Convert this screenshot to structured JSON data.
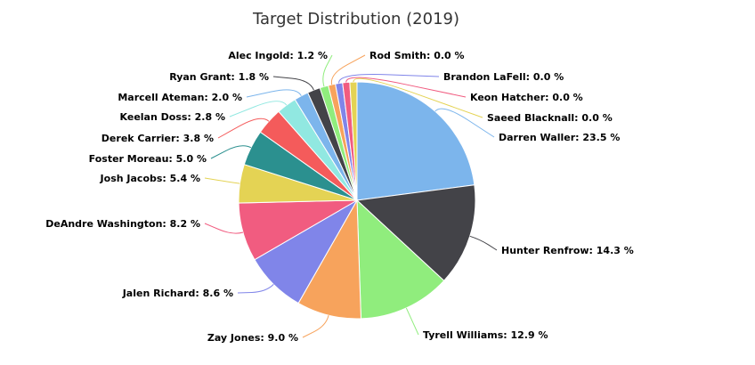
{
  "chart_data": {
    "type": "pie",
    "title": "Target Distribution (2019)",
    "value_suffix": " %",
    "slices": [
      {
        "name": "Darren Waller",
        "value": 23.5,
        "color": "#7cb5ec"
      },
      {
        "name": "Hunter Renfrow",
        "value": 14.3,
        "color": "#434348"
      },
      {
        "name": "Tyrell Williams",
        "value": 12.9,
        "color": "#90ed7d"
      },
      {
        "name": "Zay Jones",
        "value": 9.0,
        "color": "#f7a35c"
      },
      {
        "name": "Jalen Richard",
        "value": 8.6,
        "color": "#8085e9"
      },
      {
        "name": "DeAndre Washington",
        "value": 8.2,
        "color": "#f15c80"
      },
      {
        "name": "Josh Jacobs",
        "value": 5.4,
        "color": "#e4d354"
      },
      {
        "name": "Foster Moreau",
        "value": 5.0,
        "color": "#2b908f"
      },
      {
        "name": "Derek Carrier",
        "value": 3.8,
        "color": "#f45b5b"
      },
      {
        "name": "Keelan Doss",
        "value": 2.8,
        "color": "#91e8e1"
      },
      {
        "name": "Marcell Ateman",
        "value": 2.0,
        "color": "#7cb5ec"
      },
      {
        "name": "Ryan Grant",
        "value": 1.8,
        "color": "#434348"
      },
      {
        "name": "Alec Ingold",
        "value": 1.2,
        "color": "#90ed7d"
      },
      {
        "name": "Rod Smith",
        "value": 0.0,
        "color": "#f7a35c"
      },
      {
        "name": "Brandon LaFell",
        "value": 0.0,
        "color": "#8085e9"
      },
      {
        "name": "Keon Hatcher",
        "value": 0.0,
        "color": "#f15c80"
      },
      {
        "name": "Saeed Blacknall",
        "value": 0.0,
        "color": "#e4d354"
      }
    ]
  }
}
